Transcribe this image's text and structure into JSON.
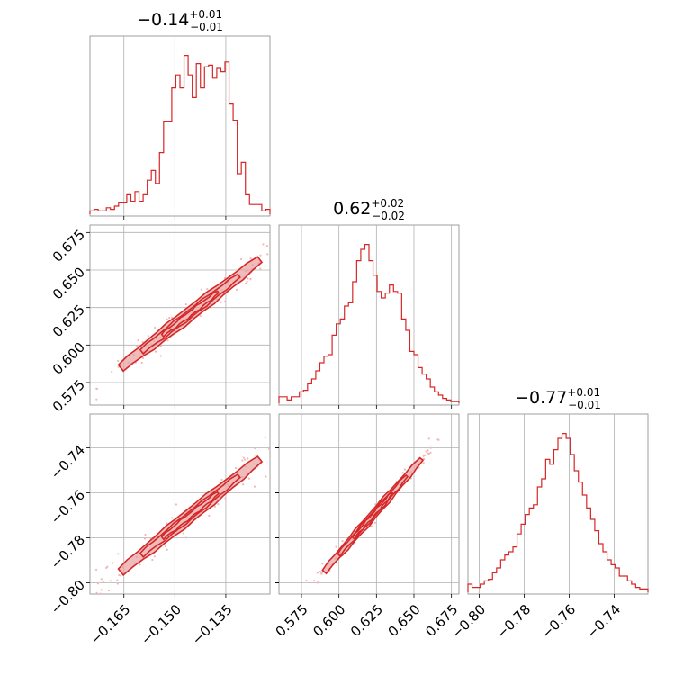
{
  "colors": {
    "series": "#d62728",
    "scatter": "#f2b8b8",
    "contour_fill": "#e8a0a0"
  },
  "chart_data": {
    "type": "corner",
    "grid": true,
    "parameters": [
      {
        "range": [
          -0.175,
          -0.122
        ],
        "ticks": [
          -0.165,
          -0.15,
          -0.135
        ],
        "tick_labels": [
          "−0.165",
          "−0.150",
          "−0.135"
        ],
        "median": -0.14,
        "err_plus": 0.01,
        "err_minus": 0.01,
        "title": "−0.14",
        "title_plus": "+0.01",
        "title_minus": "−0.01"
      },
      {
        "range": [
          0.56,
          0.68
        ],
        "ticks": [
          0.575,
          0.6,
          0.625,
          0.65,
          0.675
        ],
        "tick_labels": [
          "0.575",
          "0.600",
          "0.625",
          "0.650",
          "0.675"
        ],
        "median": 0.62,
        "err_plus": 0.02,
        "err_minus": 0.02,
        "title": "0.62",
        "title_plus": "+0.02",
        "title_minus": "−0.02"
      },
      {
        "range": [
          -0.805,
          -0.725
        ],
        "ticks": [
          -0.8,
          -0.78,
          -0.76,
          -0.74
        ],
        "tick_labels": [
          "−0.80",
          "−0.78",
          "−0.76",
          "−0.74"
        ],
        "median": -0.77,
        "err_plus": 0.01,
        "err_minus": 0.01,
        "title": "−0.77",
        "title_plus": "+0.01",
        "title_minus": "−0.01"
      }
    ],
    "histograms": [
      {
        "param": 0,
        "counts": [
          0.02,
          0.03,
          0.02,
          0.02,
          0.04,
          0.03,
          0.05,
          0.07,
          0.07,
          0.12,
          0.08,
          0.14,
          0.08,
          0.12,
          0.21,
          0.27,
          0.19,
          0.38,
          0.57,
          0.57,
          0.78,
          0.86,
          0.78,
          0.98,
          0.86,
          0.72,
          0.93,
          0.78,
          0.91,
          0.92,
          0.84,
          0.9,
          0.88,
          0.94,
          0.68,
          0.58,
          0.25,
          0.32,
          0.12,
          0.06,
          0.06,
          0.06,
          0.02,
          0.03
        ]
      },
      {
        "param": 1,
        "counts": [
          0.04,
          0.04,
          0.02,
          0.04,
          0.04,
          0.07,
          0.08,
          0.12,
          0.15,
          0.2,
          0.25,
          0.29,
          0.3,
          0.42,
          0.49,
          0.52,
          0.6,
          0.62,
          0.75,
          0.88,
          0.95,
          0.98,
          0.88,
          0.79,
          0.69,
          0.65,
          0.68,
          0.73,
          0.69,
          0.68,
          0.52,
          0.45,
          0.32,
          0.3,
          0.22,
          0.18,
          0.15,
          0.1,
          0.07,
          0.05,
          0.03,
          0.02,
          0.01,
          0.01
        ]
      },
      {
        "param": 2,
        "counts": [
          0.05,
          0.03,
          0.03,
          0.05,
          0.07,
          0.08,
          0.12,
          0.15,
          0.2,
          0.23,
          0.25,
          0.28,
          0.36,
          0.42,
          0.48,
          0.52,
          0.54,
          0.65,
          0.7,
          0.82,
          0.79,
          0.88,
          0.95,
          0.98,
          0.95,
          0.85,
          0.75,
          0.68,
          0.6,
          0.52,
          0.45,
          0.38,
          0.3,
          0.25,
          0.2,
          0.17,
          0.15,
          0.1,
          0.1,
          0.07,
          0.05,
          0.03,
          0.02,
          0.02
        ]
      }
    ],
    "pairs": [
      {
        "x_param": 0,
        "y_param": 1,
        "trend_x": [
          -0.166,
          -0.125
        ],
        "trend_y": [
          0.585,
          0.657
        ],
        "width": 0.006
      },
      {
        "x_param": 0,
        "y_param": 2,
        "trend_x": [
          -0.166,
          -0.125
        ],
        "trend_y": [
          -0.795,
          -0.745
        ],
        "width": 0.005
      },
      {
        "x_param": 1,
        "y_param": 2,
        "trend_x": [
          0.59,
          0.655
        ],
        "trend_y": [
          -0.795,
          -0.745
        ],
        "width": 0.002
      }
    ]
  }
}
